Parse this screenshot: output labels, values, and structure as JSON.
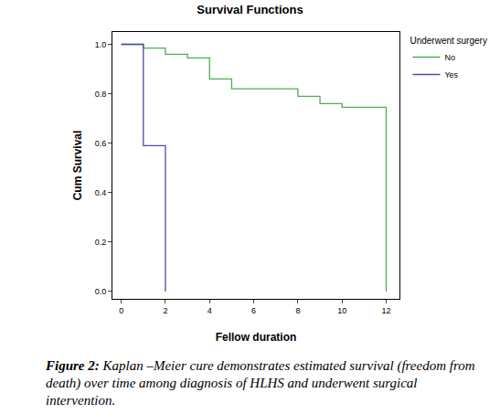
{
  "chart_data": {
    "type": "step",
    "title": "Survival Functions",
    "x_label": "Fellow duration",
    "y_label": "Cum Survival",
    "legend_title": "Underwent surgery",
    "legend": "upper right",
    "grid": false,
    "xlim": [
      -0.4,
      12.6
    ],
    "xticks": [
      0,
      2,
      4,
      6,
      8,
      10,
      12
    ],
    "ylim": [
      -0.03,
      1.05
    ],
    "yticks": [
      {
        "value": 0,
        "label": "0.0"
      },
      0.2,
      0.4,
      0.6,
      0.8,
      {
        "value": 1,
        "label": "1.0"
      }
    ],
    "series": [
      {
        "name": "No",
        "color": "#4fae4f",
        "x": [
          0,
          1,
          2,
          3,
          4,
          5,
          8,
          9,
          10,
          12
        ],
        "values": [
          1.0,
          0.985,
          0.96,
          0.945,
          0.86,
          0.82,
          0.79,
          0.76,
          0.745,
          0.0
        ]
      },
      {
        "name": "Yes",
        "color": "#4b4bb5",
        "x": [
          0,
          1,
          2
        ],
        "values": [
          1.0,
          0.59,
          0.0
        ]
      }
    ],
    "caption_label": "Figure 2:",
    "caption": "Kaplan –Meier cure demonstrates estimated survival (freedom from death) over time among diagnosis of HLHS and underwent surgical intervention."
  }
}
